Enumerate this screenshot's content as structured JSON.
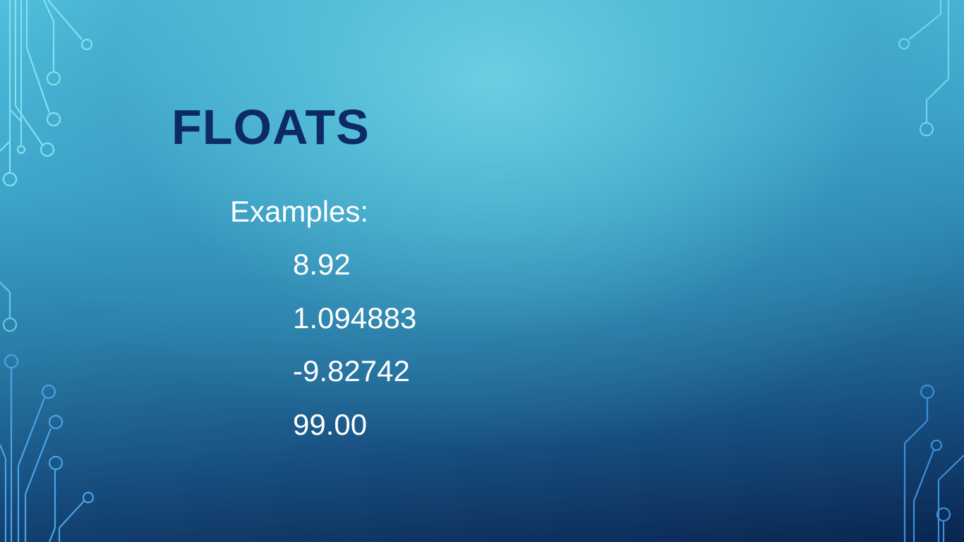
{
  "slide": {
    "title": "FLOATS",
    "intro": "Examples:",
    "examples": [
      "8.92",
      "1.094883",
      "-9.82742",
      "99.00"
    ]
  },
  "theme": {
    "title_color": "#0d2a66",
    "text_color": "#ffffff",
    "background_light": "#5fcbe0",
    "background_dark": "#0a2550",
    "circuit_light": "#7fe3f2",
    "circuit_blue": "#4aa3e6"
  }
}
